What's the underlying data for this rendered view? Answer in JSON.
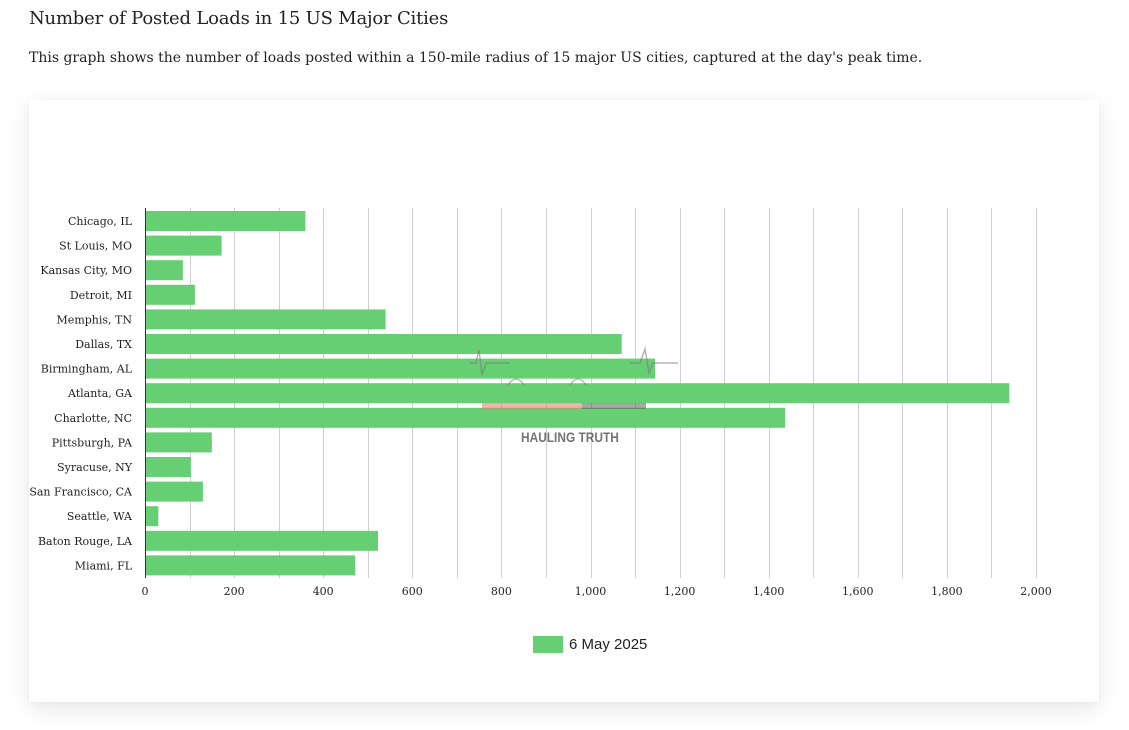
{
  "page": {
    "title": "Number of Posted Loads in 15 US Major Cities",
    "description": "This graph shows the number of loads posted within a 150-mile radius of 15 major US cities, captured at the day's peak time."
  },
  "watermark": {
    "text": "HAULING TRUTH"
  },
  "colors": {
    "bar": "#66cf73",
    "grid": "#d0d0d0",
    "axis": "#333333"
  },
  "chart_data": {
    "type": "bar",
    "orientation": "horizontal",
    "title": "",
    "xlabel": "",
    "ylabel": "",
    "xlim": [
      0,
      2000
    ],
    "x_ticks": [
      0,
      200,
      400,
      600,
      800,
      1000,
      1200,
      1400,
      1600,
      1800,
      2000
    ],
    "x_tick_labels": [
      "0",
      "200",
      "400",
      "600",
      "800",
      "1,000",
      "1,200",
      "1,400",
      "1,600",
      "1,800",
      "2,000"
    ],
    "grid": true,
    "categories": [
      "Chicago, IL",
      "St Louis, MO",
      "Kansas City, MO",
      "Detroit, MI",
      "Memphis, TN",
      "Dallas, TX",
      "Birmingham, AL",
      "Atlanta, GA",
      "Charlotte, NC",
      "Pittsburgh, PA",
      "Syracuse, NY",
      "San Francisco, CA",
      "Seattle, WA",
      "Baton Rouge, LA",
      "Miami, FL"
    ],
    "series": [
      {
        "name": "6 May 2025",
        "values": [
          360,
          172,
          85,
          112,
          540,
          1070,
          1145,
          1940,
          1437,
          150,
          103,
          130,
          30,
          523,
          472
        ]
      }
    ],
    "legend_position": "bottom"
  }
}
